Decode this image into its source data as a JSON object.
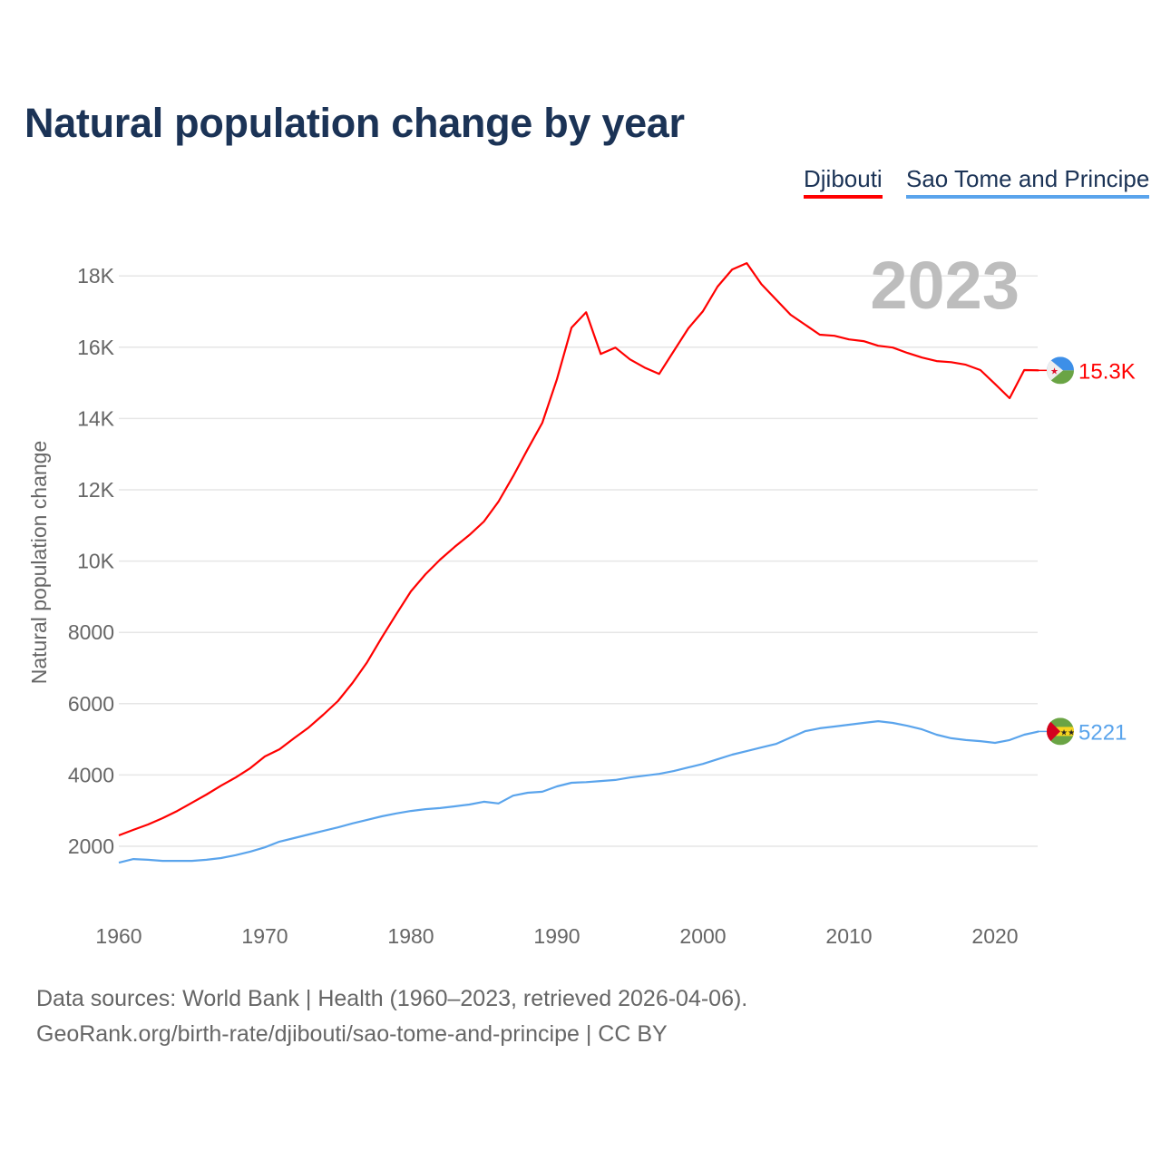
{
  "title": "Natural population change by year",
  "legend": [
    {
      "label": "Djibouti",
      "color": "#ff0000"
    },
    {
      "label": "Sao Tome and Principe",
      "color": "#5aa4ec"
    }
  ],
  "footer": {
    "line1": "Data sources: World Bank | Health (1960–2023, retrieved 2026-04-06).",
    "line2": "GeoRank.org/birth-rate/djibouti/sao-tome-and-principe | CC BY"
  },
  "chart_data": {
    "type": "line",
    "title": "Natural population change by year",
    "xlabel": "",
    "ylabel": "Natural population change",
    "year_watermark": "2023",
    "xlim": [
      1960,
      2023
    ],
    "ylim": [
      1000,
      19000
    ],
    "grid": true,
    "legend_position": "top-right",
    "x_ticks": [
      1960,
      1970,
      1980,
      1990,
      2000,
      2010,
      2020
    ],
    "x_tick_labels": [
      "1960",
      "1970",
      "1980",
      "1990",
      "2000",
      "2010",
      "2020"
    ],
    "y_ticks": [
      2000,
      4000,
      6000,
      8000,
      10000,
      12000,
      14000,
      16000,
      18000
    ],
    "y_tick_labels": [
      "2000",
      "4000",
      "6000",
      "8000",
      "10K",
      "12K",
      "14K",
      "16K",
      "18K"
    ],
    "x": [
      1960,
      1961,
      1962,
      1963,
      1964,
      1965,
      1966,
      1967,
      1968,
      1969,
      1970,
      1971,
      1972,
      1973,
      1974,
      1975,
      1976,
      1977,
      1978,
      1979,
      1980,
      1981,
      1982,
      1983,
      1984,
      1985,
      1986,
      1987,
      1988,
      1989,
      1990,
      1991,
      1992,
      1993,
      1994,
      1995,
      1996,
      1997,
      1998,
      1999,
      2000,
      2001,
      2002,
      2003,
      2004,
      2005,
      2006,
      2007,
      2008,
      2009,
      2010,
      2011,
      2012,
      2013,
      2014,
      2015,
      2016,
      2017,
      2018,
      2019,
      2020,
      2021,
      2022,
      2023
    ],
    "series": [
      {
        "name": "Djibouti",
        "color": "#ff0000",
        "end_label": "15.3K",
        "values": [
          2305,
          2460,
          2610,
          2790,
          2990,
          3220,
          3450,
          3700,
          3930,
          4190,
          4520,
          4720,
          5030,
          5330,
          5690,
          6070,
          6580,
          7160,
          7850,
          8510,
          9150,
          9630,
          10040,
          10400,
          10730,
          11110,
          11670,
          12380,
          13140,
          13880,
          15100,
          16550,
          16980,
          15810,
          15990,
          15660,
          15430,
          15250,
          15890,
          16530,
          17010,
          17700,
          18180,
          18360,
          17770,
          17340,
          16910,
          16630,
          16350,
          16320,
          16220,
          16170,
          16040,
          15990,
          15840,
          15710,
          15610,
          15580,
          15510,
          15360,
          14970,
          14570,
          15360,
          15350
        ]
      },
      {
        "name": "Sao Tome and Principe",
        "color": "#5aa4ec",
        "end_label": "5221",
        "values": [
          1540,
          1640,
          1620,
          1590,
          1590,
          1590,
          1620,
          1670,
          1750,
          1850,
          1970,
          2130,
          2230,
          2330,
          2430,
          2530,
          2640,
          2740,
          2840,
          2920,
          2990,
          3040,
          3070,
          3120,
          3170,
          3250,
          3200,
          3420,
          3500,
          3530,
          3680,
          3780,
          3800,
          3830,
          3860,
          3930,
          3980,
          4030,
          4110,
          4210,
          4310,
          4440,
          4570,
          4670,
          4770,
          4870,
          5050,
          5230,
          5310,
          5360,
          5410,
          5460,
          5510,
          5460,
          5380,
          5280,
          5130,
          5030,
          4980,
          4950,
          4900,
          4980,
          5130,
          5221
        ]
      }
    ]
  }
}
